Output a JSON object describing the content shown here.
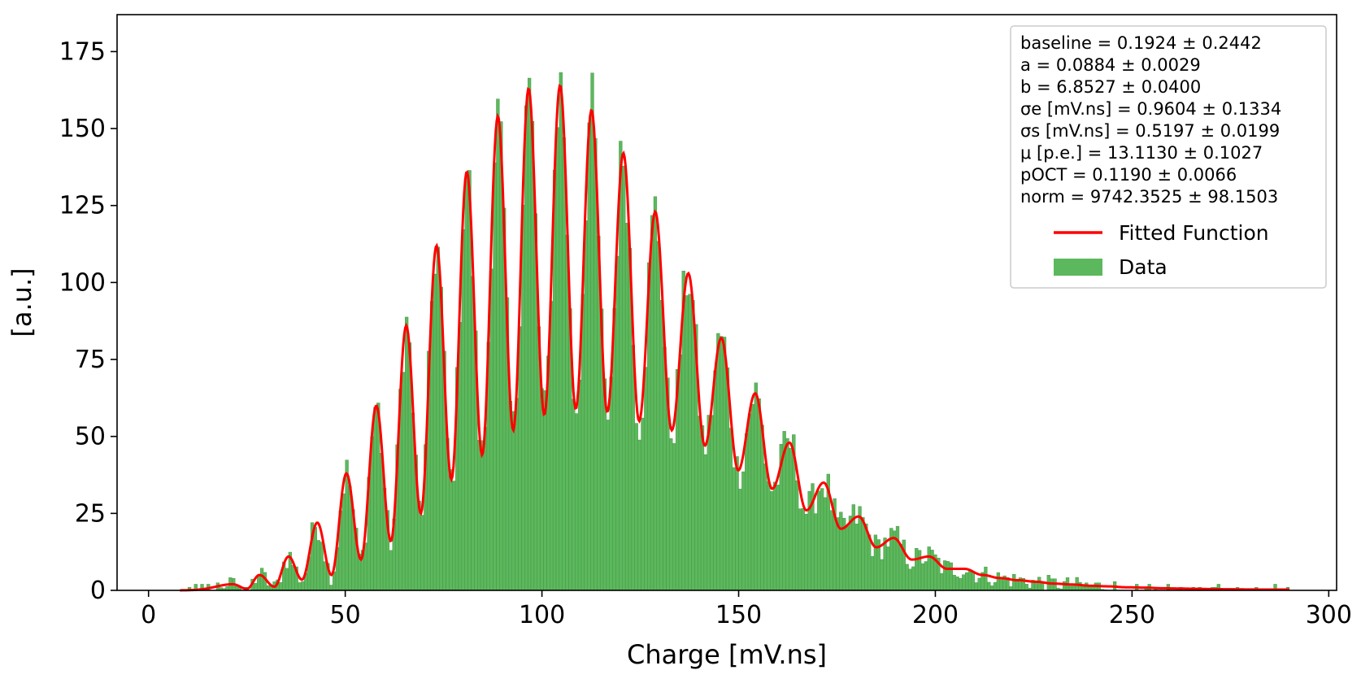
{
  "chart_data": {
    "type": "bar",
    "title": "",
    "xlabel": "Charge [mV.ns]",
    "ylabel": "[a.u.]",
    "xlim": [
      -8,
      302
    ],
    "ylim": [
      0,
      187
    ],
    "xticks": [
      0,
      50,
      100,
      150,
      200,
      250,
      300
    ],
    "yticks": [
      0,
      25,
      50,
      75,
      100,
      125,
      150,
      175
    ],
    "grid": false,
    "legend_position": "top-right",
    "fit_parameters": [
      "baseline = 0.1924 ± 0.2442",
      "a = 0.0884 ± 0.0029",
      "b = 6.8527 ± 0.0400",
      "σe [mV.ns] = 0.9604 ± 0.1334",
      "σs [mV.ns] = 0.5197 ± 0.0199",
      "μ [p.e.] = 13.1130 ± 0.1027",
      "pOCT = 0.1190 ± 0.0066",
      "norm = 9742.3525 ± 98.1503"
    ],
    "fit": {
      "baseline": 0.1924,
      "a": 0.0884,
      "b": 6.8527,
      "sigma_e": 0.9604,
      "sigma_s": 0.5197,
      "mu": 13.113,
      "p_oct": 0.119,
      "norm": 9742.3525
    },
    "series": [
      {
        "name": "Fitted Function",
        "color": "#ff0000",
        "kind": "line"
      },
      {
        "name": "Data",
        "color": "#5cb85c",
        "kind": "bar"
      }
    ],
    "bin_width": 0.8,
    "x_start": 10,
    "x_end": 290,
    "peaks": [
      [
        21.4,
        2
      ],
      [
        28.2,
        5
      ],
      [
        35.6,
        11
      ],
      [
        42.9,
        22
      ],
      [
        50.3,
        38
      ],
      [
        57.9,
        60
      ],
      [
        65.5,
        86
      ],
      [
        73.2,
        112
      ],
      [
        80.9,
        136
      ],
      [
        88.8,
        154
      ],
      [
        96.6,
        163
      ],
      [
        104.6,
        164
      ],
      [
        112.6,
        156
      ],
      [
        120.7,
        142
      ],
      [
        128.8,
        123
      ],
      [
        137.2,
        103
      ],
      [
        145.6,
        82
      ],
      [
        154.2,
        64
      ],
      [
        162.9,
        48
      ],
      [
        171.6,
        35
      ],
      [
        180.5,
        24
      ],
      [
        189.4,
        17
      ],
      [
        198.4,
        11
      ],
      [
        207.4,
        7
      ],
      [
        216.4,
        4
      ],
      [
        225.6,
        2.8
      ],
      [
        234.8,
        1.9
      ],
      [
        244,
        1.3
      ],
      [
        253,
        0.9
      ],
      [
        262,
        0.6
      ],
      [
        271,
        0.4
      ],
      [
        280,
        0.3
      ]
    ],
    "valleys": [
      [
        25,
        0.5
      ],
      [
        32,
        1.2
      ],
      [
        39,
        3.5
      ],
      [
        46.5,
        5
      ],
      [
        54,
        10
      ],
      [
        61.6,
        16
      ],
      [
        69.2,
        25
      ],
      [
        77,
        36
      ],
      [
        84.8,
        44
      ],
      [
        92.7,
        52
      ],
      [
        100.6,
        57
      ],
      [
        108.6,
        59
      ],
      [
        116.6,
        58
      ],
      [
        124.7,
        55
      ],
      [
        133,
        52
      ],
      [
        141.4,
        47
      ],
      [
        149.9,
        39
      ],
      [
        158.5,
        33
      ],
      [
        167.2,
        26
      ],
      [
        176,
        20
      ],
      [
        185,
        14
      ],
      [
        194,
        10
      ],
      [
        203,
        7
      ],
      [
        212,
        5
      ],
      [
        221,
        3.3
      ],
      [
        230,
        2.2
      ],
      [
        239.4,
        1.5
      ],
      [
        248.5,
        1
      ],
      [
        257.5,
        0.7
      ],
      [
        266.5,
        0.5
      ],
      [
        275.5,
        0.35
      ],
      [
        285,
        0.25
      ]
    ]
  }
}
